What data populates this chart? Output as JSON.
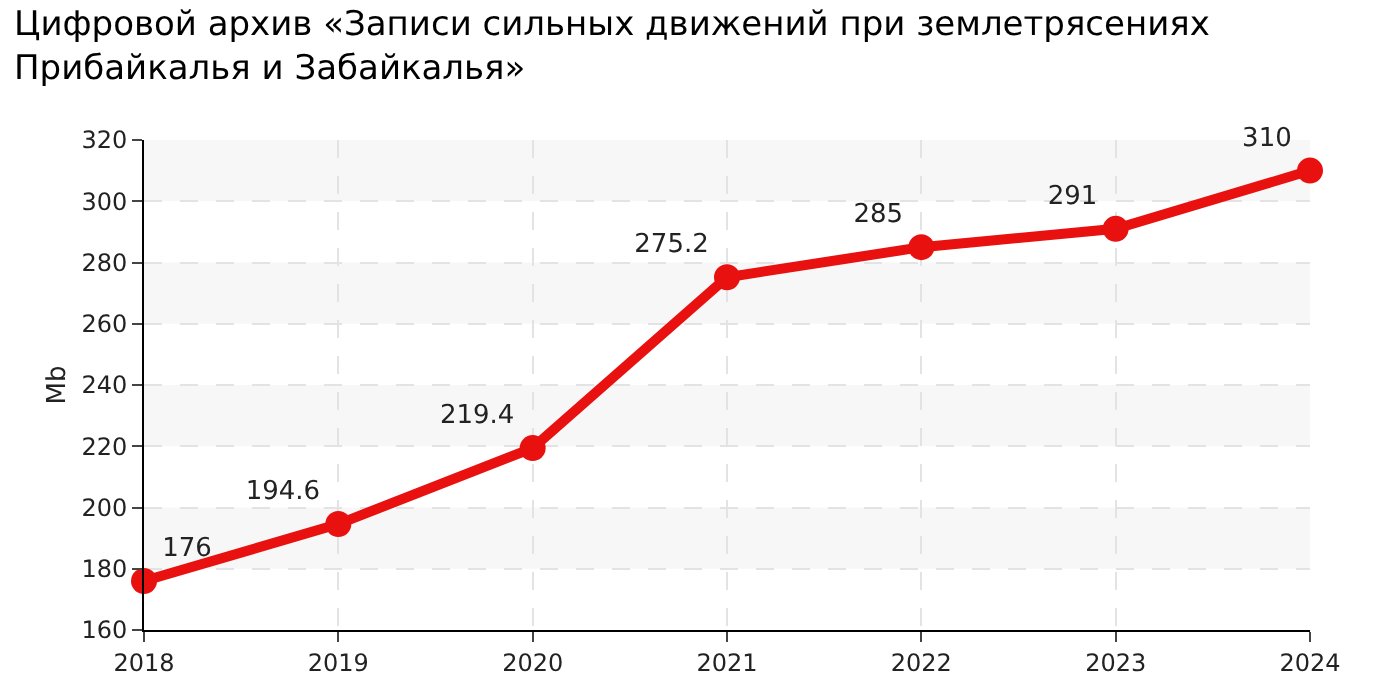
{
  "chart_data": {
    "type": "line",
    "title": "Цифровой архив «Записи сильных движений при землетрясениях\nПрибайкалья и Забайкалья»",
    "ylabel": "Mb",
    "x": [
      2018,
      2019,
      2020,
      2021,
      2022,
      2023,
      2024
    ],
    "series": [
      {
        "color": "#e8110f",
        "values": [
          176,
          194.6,
          219.4,
          275.2,
          285,
          291,
          310
        ]
      }
    ],
    "xlim": [
      2018,
      2024
    ],
    "xticks": [
      2018,
      2019,
      2020,
      2021,
      2022,
      2023,
      2024
    ],
    "ylim": [
      160,
      320
    ],
    "yticks": [
      160,
      180,
      200,
      220,
      240,
      260,
      280,
      300,
      320
    ],
    "bands": [
      {
        "axis": "y",
        "from": 180,
        "to": 200,
        "color": "#f7f7f7"
      },
      {
        "axis": "y",
        "from": 220,
        "to": 240,
        "color": "#f7f7f7"
      },
      {
        "axis": "y",
        "from": 260,
        "to": 280,
        "color": "#f7f7f7"
      },
      {
        "axis": "y",
        "from": 300,
        "to": 320,
        "color": "#f7f7f7"
      }
    ],
    "grid": true,
    "marker": "circle",
    "line_style": "solid",
    "data_labels": true
  }
}
